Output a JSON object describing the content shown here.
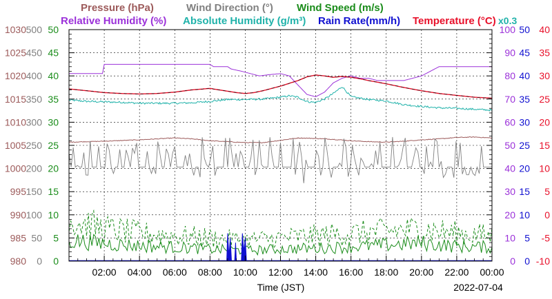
{
  "chart_data": {
    "type": "line",
    "xlabel": "Time (JST)",
    "date": "2022-07-04",
    "x_ticks": [
      "02:00",
      "04:00",
      "06:00",
      "08:00",
      "10:00",
      "12:00",
      "14:00",
      "16:00",
      "18:00",
      "20:00",
      "22:00",
      "00:00"
    ],
    "x_range_hours": [
      0,
      24
    ],
    "grid": true,
    "legend": [
      {
        "name": "Pressure (hPa)",
        "color": "#9c5a5a",
        "row": 1
      },
      {
        "name": "Wind Direction (°)",
        "color": "#808080",
        "row": 1
      },
      {
        "name": "Wind Speed (m/s)",
        "color": "#1a8c1a",
        "row": 1
      },
      {
        "name": "Relative Humidity (%)",
        "color": "#9b30d9",
        "row": 2
      },
      {
        "name": "Absolute Humidity (g/m³)",
        "color": "#20b2aa",
        "row": 2
      },
      {
        "name": "Rain Rate(mm/h)",
        "color": "#1010d0",
        "row": 2
      },
      {
        "name": "Temperature (°C)",
        "color": "#e8102a",
        "row": 2
      }
    ],
    "rain_scale_note": "x0.3",
    "axes": {
      "pressure": {
        "labels": [
          "980",
          "985",
          "990",
          "995",
          "1000",
          "1005",
          "1010",
          "1015",
          "1020",
          "1025",
          "1030"
        ],
        "range": [
          980,
          1030
        ],
        "color": "#9c5a5a"
      },
      "wind_direction": {
        "labels": [
          "0",
          "50",
          "100",
          "150",
          "200",
          "250",
          "300",
          "350",
          "400",
          "450",
          "500"
        ],
        "range": [
          0,
          500
        ],
        "color": "#808080"
      },
      "wind_speed": {
        "labels": [
          "0",
          "5",
          "10",
          "15",
          "20",
          "25",
          "30",
          "35",
          "40",
          "45",
          "50"
        ],
        "range": [
          0,
          50
        ],
        "color": "#1a8c1a"
      },
      "humidity": {
        "labels": [
          "0",
          "10",
          "20",
          "30",
          "40",
          "50",
          "60",
          "70",
          "80",
          "90",
          "100"
        ],
        "range": [
          0,
          100
        ],
        "color": "#9b30d9"
      },
      "rain_rate": {
        "labels": [
          "0",
          "5",
          "10",
          "15",
          "20",
          "25",
          "30",
          "35",
          "40",
          "45",
          "50"
        ],
        "range": [
          0,
          50
        ],
        "color": "#1010d0"
      },
      "temperature": {
        "labels": [
          "-10",
          "-5",
          "0",
          "5",
          "10",
          "15",
          "20",
          "25",
          "30",
          "35",
          "40"
        ],
        "range": [
          -10,
          40
        ],
        "color": "#e8102a"
      }
    },
    "series": [
      {
        "name": "Relative Humidity",
        "axis": "humidity",
        "color": "#9b30d9",
        "points": [
          [
            0,
            81
          ],
          [
            1.9,
            81
          ],
          [
            2,
            85
          ],
          [
            8,
            85
          ],
          [
            8.2,
            84
          ],
          [
            9,
            84
          ],
          [
            9.2,
            83
          ],
          [
            9.8,
            82
          ],
          [
            10.3,
            81
          ],
          [
            10.8,
            80
          ],
          [
            11.3,
            80.5
          ],
          [
            12,
            81
          ],
          [
            12.5,
            80
          ],
          [
            13,
            76
          ],
          [
            13.5,
            72
          ],
          [
            14,
            71
          ],
          [
            14.5,
            73
          ],
          [
            15,
            77
          ],
          [
            15.5,
            79
          ],
          [
            16,
            80
          ],
          [
            16.5,
            79
          ],
          [
            17,
            79
          ],
          [
            17.5,
            78
          ],
          [
            18,
            78
          ],
          [
            19,
            78
          ],
          [
            19.5,
            79
          ],
          [
            20,
            80
          ],
          [
            21,
            84
          ],
          [
            24,
            84
          ]
        ]
      },
      {
        "name": "Temperature",
        "axis": "temperature",
        "color": "#e8102a",
        "points": [
          [
            0,
            27.2
          ],
          [
            1,
            26.8
          ],
          [
            2,
            26.4
          ],
          [
            3,
            26.2
          ],
          [
            4,
            26.1
          ],
          [
            5,
            26.2
          ],
          [
            6,
            26.5
          ],
          [
            7,
            27.0
          ],
          [
            8,
            27.3
          ],
          [
            8.5,
            27.0
          ],
          [
            9,
            26.7
          ],
          [
            9.5,
            26.4
          ],
          [
            10,
            26.2
          ],
          [
            10.5,
            26.4
          ],
          [
            11,
            26.8
          ],
          [
            11.5,
            27.3
          ],
          [
            12,
            27.8
          ],
          [
            12.5,
            28.4
          ],
          [
            13,
            29.0
          ],
          [
            13.5,
            29.8
          ],
          [
            14,
            30.2
          ],
          [
            14.5,
            30.0
          ],
          [
            15,
            29.7
          ],
          [
            15.5,
            29.9
          ],
          [
            16,
            29.7
          ],
          [
            16.5,
            29.4
          ],
          [
            17,
            29.0
          ],
          [
            18,
            28.3
          ],
          [
            19,
            27.5
          ],
          [
            20,
            26.8
          ],
          [
            21,
            26.2
          ],
          [
            22,
            25.8
          ],
          [
            23,
            25.4
          ],
          [
            24,
            25.2
          ]
        ]
      },
      {
        "name": "Absolute Humidity",
        "axis": "wind_direction",
        "color": "#20b2aa",
        "points": [
          [
            0,
            348
          ],
          [
            1,
            345
          ],
          [
            2,
            344
          ],
          [
            3,
            343
          ],
          [
            4,
            341
          ],
          [
            5,
            341
          ],
          [
            6,
            341
          ],
          [
            7,
            342
          ],
          [
            8,
            345
          ],
          [
            9,
            349
          ],
          [
            10,
            349
          ],
          [
            11,
            350
          ],
          [
            12,
            354
          ],
          [
            12.5,
            357
          ],
          [
            13,
            354
          ],
          [
            13.3,
            348
          ],
          [
            13.6,
            344
          ],
          [
            14,
            343
          ],
          [
            14.5,
            350
          ],
          [
            15,
            362
          ],
          [
            15.5,
            377
          ],
          [
            16,
            355
          ],
          [
            16.5,
            352
          ],
          [
            17,
            349
          ],
          [
            18,
            346
          ],
          [
            19,
            338
          ],
          [
            20,
            334
          ],
          [
            21,
            331
          ],
          [
            22,
            330
          ],
          [
            23,
            328
          ],
          [
            24,
            326
          ]
        ]
      },
      {
        "name": "Pressure",
        "axis": "pressure",
        "color": "#9c5a5a",
        "points": [
          [
            0,
            1005.7
          ],
          [
            2,
            1005.9
          ],
          [
            4,
            1006.2
          ],
          [
            6,
            1006.6
          ],
          [
            7,
            1006.4
          ],
          [
            8,
            1006.0
          ],
          [
            9,
            1005.8
          ],
          [
            10,
            1005.6
          ],
          [
            11,
            1005.6
          ],
          [
            12,
            1006.1
          ],
          [
            13,
            1006.6
          ],
          [
            14,
            1006.5
          ],
          [
            15,
            1006.3
          ],
          [
            16,
            1006.0
          ],
          [
            17,
            1005.8
          ],
          [
            18,
            1005.7
          ],
          [
            19,
            1005.9
          ],
          [
            20,
            1006.2
          ],
          [
            21,
            1006.4
          ],
          [
            22,
            1006.7
          ],
          [
            23,
            1006.8
          ],
          [
            24,
            1006.6
          ]
        ]
      },
      {
        "name": "Wind Direction",
        "axis": "wind_direction",
        "color": "#808080",
        "base": 203,
        "low": 180,
        "high": 270
      },
      {
        "name": "Wind Speed gust",
        "axis": "wind_speed",
        "color": "#1a8c1a",
        "dashed": true,
        "envelope": [
          [
            0,
            9
          ],
          [
            2,
            7
          ],
          [
            4,
            6
          ],
          [
            6,
            5.5
          ],
          [
            8,
            5
          ],
          [
            10,
            4.5
          ],
          [
            12,
            5
          ],
          [
            14,
            5.5
          ],
          [
            16,
            6
          ],
          [
            18,
            6.5
          ],
          [
            20,
            7
          ],
          [
            22,
            6
          ],
          [
            24,
            5.5
          ]
        ]
      },
      {
        "name": "Wind Speed mean",
        "axis": "wind_speed",
        "color": "#1a8c1a",
        "envelope": [
          [
            0,
            4.5
          ],
          [
            2,
            3.8
          ],
          [
            4,
            3.3
          ],
          [
            6,
            3.0
          ],
          [
            8,
            2.6
          ],
          [
            10,
            2.3
          ],
          [
            12,
            2.6
          ],
          [
            14,
            2.8
          ],
          [
            16,
            3.1
          ],
          [
            18,
            3.5
          ],
          [
            20,
            3.9
          ],
          [
            22,
            3.2
          ],
          [
            24,
            3.0
          ]
        ]
      },
      {
        "name": "Rain Rate",
        "axis": "rain_rate",
        "color": "#1010d0",
        "points": [
          [
            8.95,
            0
          ],
          [
            9.0,
            6
          ],
          [
            9.08,
            1
          ],
          [
            9.15,
            5
          ],
          [
            9.22,
            0
          ],
          [
            9.4,
            0
          ],
          [
            9.45,
            4
          ],
          [
            9.5,
            0
          ],
          [
            9.78,
            0
          ],
          [
            9.84,
            6
          ],
          [
            9.92,
            2
          ],
          [
            10.0,
            5
          ],
          [
            10.07,
            0
          ]
        ]
      }
    ]
  }
}
